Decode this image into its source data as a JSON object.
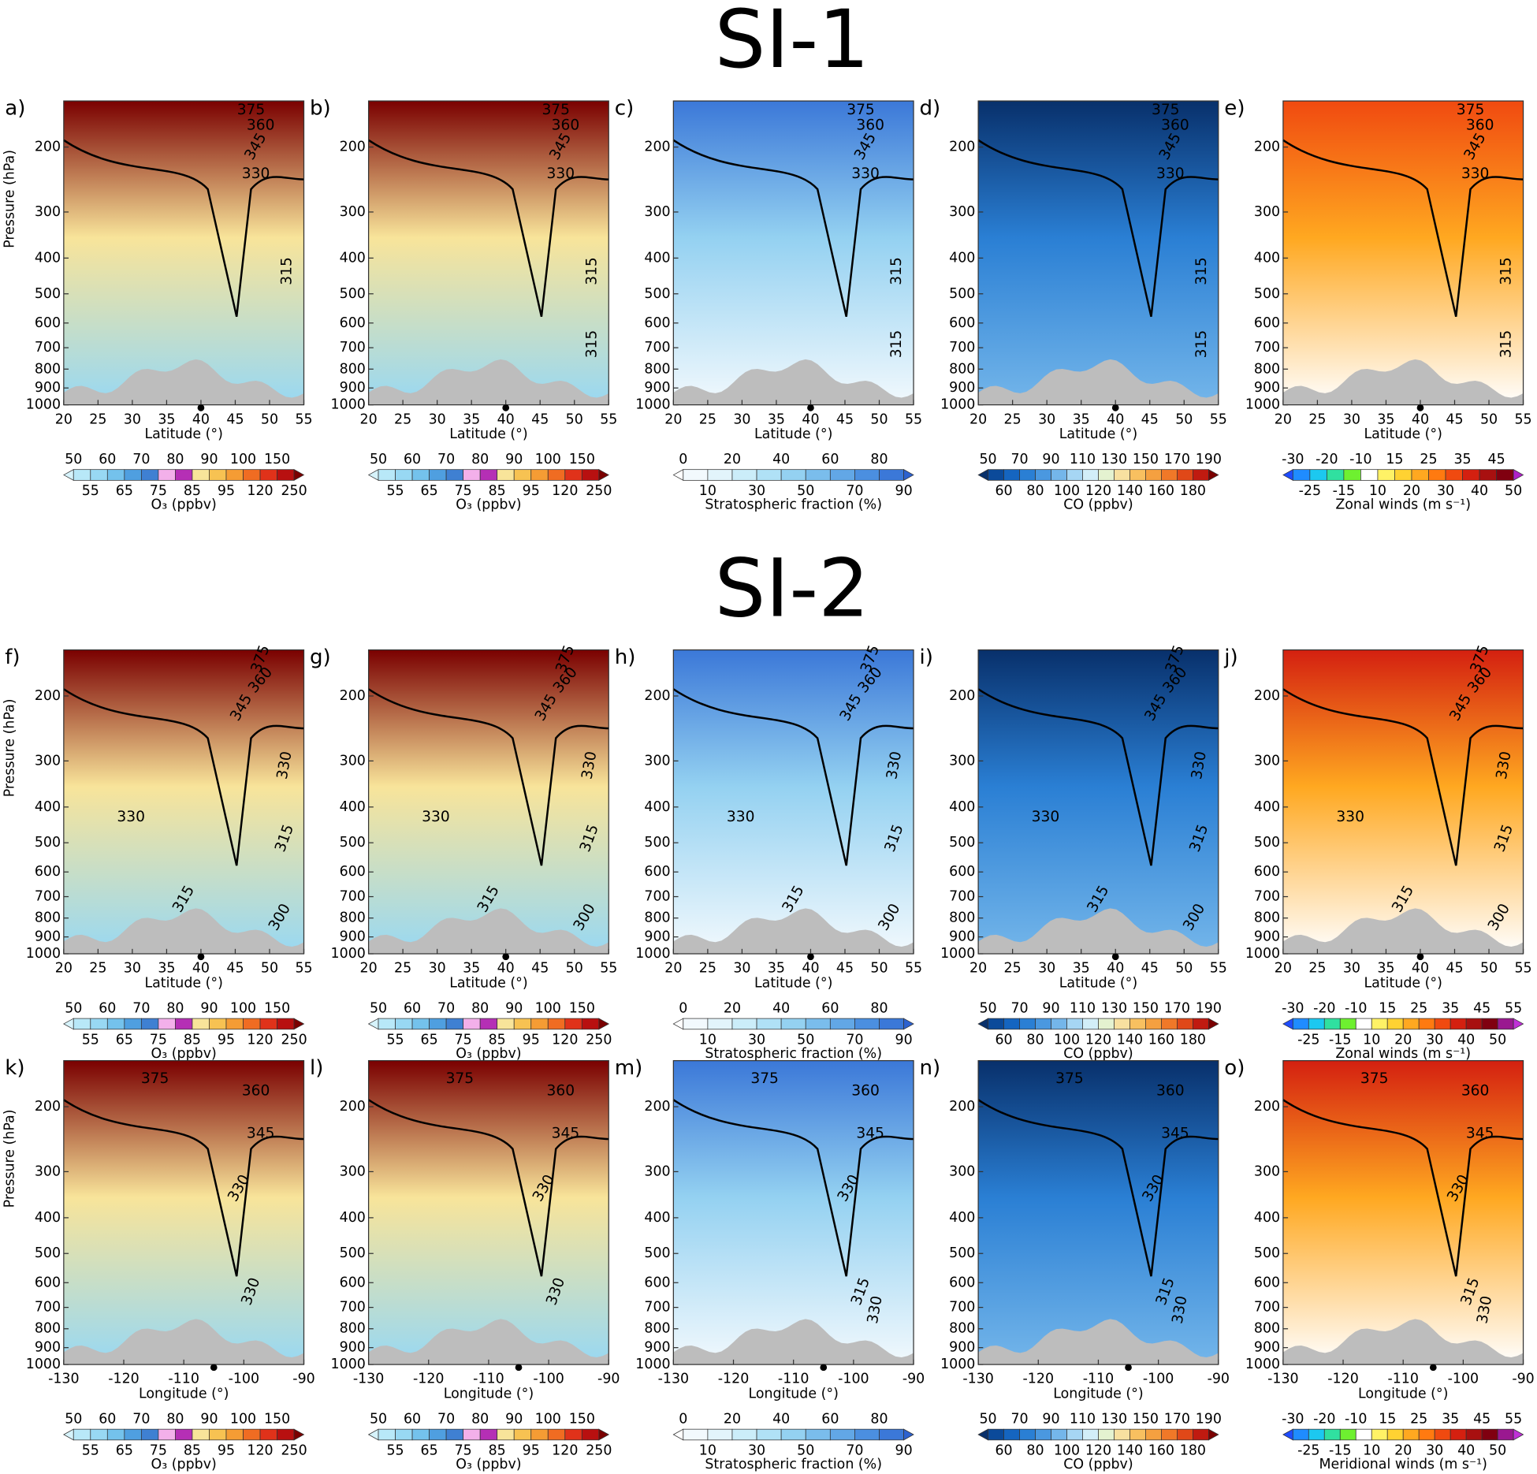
{
  "figure_titles": [
    "SI-1",
    "SI-2"
  ],
  "chart_data": [
    {
      "type": "contour",
      "title": "a)",
      "xlabel": "Latitude (°)",
      "ylabel": "Pressure (hPa)",
      "xlim": [
        20,
        55
      ],
      "xticks": [
        20,
        25,
        30,
        35,
        40,
        45,
        50,
        55
      ],
      "ylim": [
        1000,
        150
      ],
      "yticks": [
        200,
        300,
        400,
        500,
        600,
        700,
        800,
        900,
        1000
      ],
      "log_y": true,
      "colorbar": {
        "label": "O₃ (ppbv)",
        "ticks": [
          50,
          55,
          60,
          65,
          70,
          75,
          80,
          85,
          90,
          95,
          100,
          120,
          150,
          250
        ],
        "colors": [
          "#d6f3fb",
          "#b8e8f8",
          "#98d8f3",
          "#74c2ec",
          "#4f9fe0",
          "#3f80d2",
          "#f3b0ea",
          "#b52fb5",
          "#f8e49a",
          "#f7c252",
          "#f59c34",
          "#f06c22",
          "#e0321a",
          "#b81010",
          "#7a0000"
        ]
      },
      "annotations": [
        "375",
        "360",
        "345",
        "330",
        "315"
      ]
    },
    {
      "type": "contour",
      "title": "b)",
      "xlabel": "Latitude (°)",
      "xlim": [
        20,
        55
      ],
      "xticks": [
        20,
        25,
        30,
        35,
        40,
        45,
        50,
        55
      ],
      "ylim": [
        1000,
        150
      ],
      "yticks": [
        200,
        300,
        400,
        500,
        600,
        700,
        800,
        900,
        1000
      ],
      "log_y": true,
      "colorbar": {
        "label": "O₃ (ppbv)",
        "ticks": [
          50,
          55,
          60,
          65,
          70,
          75,
          80,
          85,
          90,
          95,
          100,
          120,
          150,
          250
        ],
        "colors": [
          "#d6f3fb",
          "#b8e8f8",
          "#98d8f3",
          "#74c2ec",
          "#4f9fe0",
          "#3f80d2",
          "#f3b0ea",
          "#b52fb5",
          "#f8e49a",
          "#f7c252",
          "#f59c34",
          "#f06c22",
          "#e0321a",
          "#b81010",
          "#7a0000"
        ]
      },
      "annotations": [
        "375",
        "360",
        "345",
        "330",
        "315",
        "315"
      ]
    },
    {
      "type": "contour",
      "title": "c)",
      "xlabel": "Latitude (°)",
      "xlim": [
        20,
        55
      ],
      "xticks": [
        20,
        25,
        30,
        35,
        40,
        45,
        50,
        55
      ],
      "ylim": [
        1000,
        150
      ],
      "yticks": [
        200,
        300,
        400,
        500,
        600,
        700,
        800,
        900,
        1000
      ],
      "log_y": true,
      "colorbar": {
        "label": "Stratospheric fraction (%)",
        "ticks": [
          0,
          10,
          20,
          30,
          40,
          50,
          60,
          70,
          80,
          90
        ],
        "colors": [
          "#ffffff",
          "#f2f9fd",
          "#e2f4fb",
          "#cbedf9",
          "#b0e1f6",
          "#94d1f1",
          "#7abdec",
          "#62a7e6",
          "#4b8fe0",
          "#3b78d8",
          "#2d62cf"
        ]
      },
      "annotations": [
        "375",
        "360",
        "345",
        "330",
        "315",
        "315"
      ]
    },
    {
      "type": "contour",
      "title": "d)",
      "xlabel": "Latitude (°)",
      "xlim": [
        20,
        55
      ],
      "xticks": [
        20,
        25,
        30,
        35,
        40,
        45,
        50,
        55
      ],
      "ylim": [
        1000,
        150
      ],
      "yticks": [
        200,
        300,
        400,
        500,
        600,
        700,
        800,
        900,
        1000
      ],
      "log_y": true,
      "colorbar": {
        "label": "CO (ppbv)",
        "ticks": [
          50,
          60,
          70,
          80,
          90,
          100,
          110,
          120,
          130,
          140,
          150,
          160,
          170,
          180,
          190
        ],
        "colors": [
          "#08306b",
          "#0b4a9a",
          "#1565c0",
          "#2a7fd4",
          "#4a98e0",
          "#74b6ea",
          "#a6d6f4",
          "#d2eef8",
          "#e4f2d0",
          "#f8e0a0",
          "#f8c060",
          "#f5a040",
          "#f07828",
          "#e04818",
          "#c01a10",
          "#7a0000"
        ]
      },
      "annotations": [
        "375",
        "360",
        "345",
        "330",
        "315",
        "315"
      ]
    },
    {
      "type": "contour",
      "title": "e)",
      "xlabel": "Latitude (°)",
      "xlim": [
        20,
        55
      ],
      "xticks": [
        20,
        25,
        30,
        35,
        40,
        45,
        50,
        55
      ],
      "ylim": [
        1000,
        150
      ],
      "yticks": [
        200,
        300,
        400,
        500,
        600,
        700,
        800,
        900,
        1000
      ],
      "log_y": true,
      "colorbar": {
        "label": "Zonal winds (m s⁻¹)",
        "ticks": [
          -30,
          -25,
          -20,
          -15,
          -10,
          10,
          15,
          20,
          25,
          30,
          35,
          40,
          45,
          50
        ],
        "colors": [
          "#1e4cff",
          "#1f8cff",
          "#1cc8f0",
          "#30e0a0",
          "#6ef030",
          "#ffffff",
          "#fff266",
          "#ffd232",
          "#ffa820",
          "#ff7a10",
          "#f04a10",
          "#d42010",
          "#a81010",
          "#800010",
          "#b020c8"
        ]
      },
      "annotations": [
        "375",
        "360",
        "345",
        "330",
        "315",
        "315"
      ]
    },
    {
      "type": "contour",
      "title": "f)",
      "xlabel": "Latitude (°)",
      "ylabel": "Pressure (hPa)",
      "xlim": [
        20,
        55
      ],
      "xticks": [
        20,
        25,
        30,
        35,
        40,
        45,
        50,
        55
      ],
      "ylim": [
        1000,
        150
      ],
      "yticks": [
        200,
        300,
        400,
        500,
        600,
        700,
        800,
        900,
        1000
      ],
      "log_y": true,
      "colorbar": {
        "label": "O₃ (ppbv)",
        "ticks": [
          50,
          55,
          60,
          65,
          70,
          75,
          80,
          85,
          90,
          95,
          100,
          120,
          150,
          250
        ],
        "colors": [
          "#d6f3fb",
          "#b8e8f8",
          "#98d8f3",
          "#74c2ec",
          "#4f9fe0",
          "#3f80d2",
          "#f3b0ea",
          "#b52fb5",
          "#f8e49a",
          "#f7c252",
          "#f59c34",
          "#f06c22",
          "#e0321a",
          "#b81010",
          "#7a0000"
        ]
      },
      "annotations": [
        "375",
        "360",
        "345",
        "330",
        "330",
        "315",
        "315",
        "300"
      ]
    },
    {
      "type": "contour",
      "title": "g)",
      "xlabel": "Latitude (°)",
      "xlim": [
        20,
        55
      ],
      "xticks": [
        20,
        25,
        30,
        35,
        40,
        45,
        50,
        55
      ],
      "ylim": [
        1000,
        150
      ],
      "yticks": [
        200,
        300,
        400,
        500,
        600,
        700,
        800,
        900,
        1000
      ],
      "log_y": true,
      "colorbar": {
        "label": "O₃ (ppbv)",
        "ticks": [
          50,
          55,
          60,
          65,
          70,
          75,
          80,
          85,
          90,
          95,
          100,
          120,
          150,
          250
        ],
        "colors": [
          "#d6f3fb",
          "#b8e8f8",
          "#98d8f3",
          "#74c2ec",
          "#4f9fe0",
          "#3f80d2",
          "#f3b0ea",
          "#b52fb5",
          "#f8e49a",
          "#f7c252",
          "#f59c34",
          "#f06c22",
          "#e0321a",
          "#b81010",
          "#7a0000"
        ]
      },
      "annotations": [
        "375",
        "360",
        "345",
        "330",
        "330",
        "315",
        "315",
        "300"
      ]
    },
    {
      "type": "contour",
      "title": "h)",
      "xlabel": "Latitude (°)",
      "xlim": [
        20,
        55
      ],
      "xticks": [
        20,
        25,
        30,
        35,
        40,
        45,
        50,
        55
      ],
      "ylim": [
        1000,
        150
      ],
      "yticks": [
        200,
        300,
        400,
        500,
        600,
        700,
        800,
        900,
        1000
      ],
      "log_y": true,
      "colorbar": {
        "label": "Stratospheric fraction (%)",
        "ticks": [
          0,
          10,
          20,
          30,
          40,
          50,
          60,
          70,
          80,
          90
        ],
        "colors": [
          "#ffffff",
          "#f2f9fd",
          "#e2f4fb",
          "#cbedf9",
          "#b0e1f6",
          "#94d1f1",
          "#7abdec",
          "#62a7e6",
          "#4b8fe0",
          "#3b78d8",
          "#2d62cf"
        ]
      },
      "annotations": [
        "375",
        "360",
        "345",
        "330",
        "330",
        "315",
        "315",
        "300"
      ]
    },
    {
      "type": "contour",
      "title": "i)",
      "xlabel": "Latitude (°)",
      "xlim": [
        20,
        55
      ],
      "xticks": [
        20,
        25,
        30,
        35,
        40,
        45,
        50,
        55
      ],
      "ylim": [
        1000,
        150
      ],
      "yticks": [
        200,
        300,
        400,
        500,
        600,
        700,
        800,
        900,
        1000
      ],
      "log_y": true,
      "colorbar": {
        "label": "CO (ppbv)",
        "ticks": [
          50,
          60,
          70,
          80,
          90,
          100,
          110,
          120,
          130,
          140,
          150,
          160,
          170,
          180,
          190
        ],
        "colors": [
          "#08306b",
          "#0b4a9a",
          "#1565c0",
          "#2a7fd4",
          "#4a98e0",
          "#74b6ea",
          "#a6d6f4",
          "#d2eef8",
          "#e4f2d0",
          "#f8e0a0",
          "#f8c060",
          "#f5a040",
          "#f07828",
          "#e04818",
          "#c01a10",
          "#7a0000"
        ]
      },
      "annotations": [
        "375",
        "360",
        "345",
        "330",
        "330",
        "315",
        "315",
        "300"
      ]
    },
    {
      "type": "contour",
      "title": "j)",
      "xlabel": "Latitude (°)",
      "xlim": [
        20,
        55
      ],
      "xticks": [
        20,
        25,
        30,
        35,
        40,
        45,
        50,
        55
      ],
      "ylim": [
        1000,
        150
      ],
      "yticks": [
        200,
        300,
        400,
        500,
        600,
        700,
        800,
        900,
        1000
      ],
      "log_y": true,
      "colorbar": {
        "label": "Zonal winds (m s⁻¹)",
        "ticks": [
          -30,
          -25,
          -20,
          -15,
          -10,
          10,
          15,
          20,
          25,
          30,
          35,
          40,
          45,
          50,
          55
        ],
        "colors": [
          "#1e4cff",
          "#1f8cff",
          "#1cc8f0",
          "#30e0a0",
          "#6ef030",
          "#ffffff",
          "#fff266",
          "#ffd232",
          "#ffa820",
          "#ff7a10",
          "#f04a10",
          "#d42010",
          "#a81010",
          "#800010",
          "#9a1890",
          "#c030d8"
        ]
      },
      "annotations": [
        "375",
        "360",
        "345",
        "330",
        "330",
        "315",
        "315",
        "300"
      ]
    },
    {
      "type": "contour",
      "title": "k)",
      "xlabel": "Longitude (°)",
      "ylabel": "Pressure (hPa)",
      "xlim": [
        -130,
        -90
      ],
      "xticks": [
        -130,
        -120,
        -110,
        -100,
        -90
      ],
      "ylim": [
        1000,
        150
      ],
      "yticks": [
        200,
        300,
        400,
        500,
        600,
        700,
        800,
        900,
        1000
      ],
      "log_y": true,
      "colorbar": {
        "label": "O₃ (ppbv)",
        "ticks": [
          50,
          55,
          60,
          65,
          70,
          75,
          80,
          85,
          90,
          95,
          100,
          120,
          150,
          250
        ],
        "colors": [
          "#d6f3fb",
          "#b8e8f8",
          "#98d8f3",
          "#74c2ec",
          "#4f9fe0",
          "#3f80d2",
          "#f3b0ea",
          "#b52fb5",
          "#f8e49a",
          "#f7c252",
          "#f59c34",
          "#f06c22",
          "#e0321a",
          "#b81010",
          "#7a0000"
        ]
      },
      "annotations": [
        "375",
        "360",
        "345",
        "330",
        "330"
      ]
    },
    {
      "type": "contour",
      "title": "l)",
      "xlabel": "Longitude (°)",
      "xlim": [
        -130,
        -90
      ],
      "xticks": [
        -130,
        -120,
        -110,
        -100,
        -90
      ],
      "ylim": [
        1000,
        150
      ],
      "yticks": [
        200,
        300,
        400,
        500,
        600,
        700,
        800,
        900,
        1000
      ],
      "log_y": true,
      "colorbar": {
        "label": "O₃ (ppbv)",
        "ticks": [
          50,
          55,
          60,
          65,
          70,
          75,
          80,
          85,
          90,
          95,
          100,
          120,
          150,
          250
        ],
        "colors": [
          "#d6f3fb",
          "#b8e8f8",
          "#98d8f3",
          "#74c2ec",
          "#4f9fe0",
          "#3f80d2",
          "#f3b0ea",
          "#b52fb5",
          "#f8e49a",
          "#f7c252",
          "#f59c34",
          "#f06c22",
          "#e0321a",
          "#b81010",
          "#7a0000"
        ]
      },
      "annotations": [
        "375",
        "360",
        "345",
        "330",
        "330"
      ]
    },
    {
      "type": "contour",
      "title": "m)",
      "xlabel": "Longitude (°)",
      "xlim": [
        -130,
        -90
      ],
      "xticks": [
        -130,
        -120,
        -110,
        -100,
        -90
      ],
      "ylim": [
        1000,
        150
      ],
      "yticks": [
        200,
        300,
        400,
        500,
        600,
        700,
        800,
        900,
        1000
      ],
      "log_y": true,
      "colorbar": {
        "label": "Stratospheric fraction (%)",
        "ticks": [
          0,
          10,
          20,
          30,
          40,
          50,
          60,
          70,
          80,
          90
        ],
        "colors": [
          "#ffffff",
          "#f2f9fd",
          "#e2f4fb",
          "#cbedf9",
          "#b0e1f6",
          "#94d1f1",
          "#7abdec",
          "#62a7e6",
          "#4b8fe0",
          "#3b78d8",
          "#2d62cf"
        ]
      },
      "annotations": [
        "375",
        "360",
        "345",
        "330",
        "315",
        "330"
      ]
    },
    {
      "type": "contour",
      "title": "n)",
      "xlabel": "Longitude (°)",
      "xlim": [
        -130,
        -90
      ],
      "xticks": [
        -130,
        -120,
        -110,
        -100,
        -90
      ],
      "ylim": [
        1000,
        150
      ],
      "yticks": [
        200,
        300,
        400,
        500,
        600,
        700,
        800,
        900,
        1000
      ],
      "log_y": true,
      "colorbar": {
        "label": "CO (ppbv)",
        "ticks": [
          50,
          60,
          70,
          80,
          90,
          100,
          110,
          120,
          130,
          140,
          150,
          160,
          170,
          180,
          190
        ],
        "colors": [
          "#08306b",
          "#0b4a9a",
          "#1565c0",
          "#2a7fd4",
          "#4a98e0",
          "#74b6ea",
          "#a6d6f4",
          "#d2eef8",
          "#e4f2d0",
          "#f8e0a0",
          "#f8c060",
          "#f5a040",
          "#f07828",
          "#e04818",
          "#c01a10",
          "#7a0000"
        ]
      },
      "annotations": [
        "375",
        "360",
        "345",
        "330",
        "315",
        "330"
      ]
    },
    {
      "type": "contour",
      "title": "o)",
      "xlabel": "Longitude (°)",
      "xlim": [
        -130,
        -90
      ],
      "xticks": [
        -130,
        -120,
        -110,
        -100,
        -90
      ],
      "ylim": [
        1000,
        150
      ],
      "yticks": [
        200,
        300,
        400,
        500,
        600,
        700,
        800,
        900,
        1000
      ],
      "log_y": true,
      "colorbar": {
        "label": "Meridional winds (m s⁻¹)",
        "ticks": [
          -30,
          -25,
          -20,
          -15,
          -10,
          10,
          15,
          20,
          25,
          30,
          35,
          40,
          45,
          50,
          55
        ],
        "colors": [
          "#1e4cff",
          "#1f8cff",
          "#1cc8f0",
          "#30e0a0",
          "#6ef030",
          "#ffffff",
          "#fff266",
          "#ffd232",
          "#ffa820",
          "#ff7a10",
          "#f04a10",
          "#d42010",
          "#a81010",
          "#800010",
          "#9a1890",
          "#c030d8"
        ]
      },
      "annotations": [
        "375",
        "360",
        "345",
        "330",
        "315",
        "330"
      ]
    }
  ]
}
